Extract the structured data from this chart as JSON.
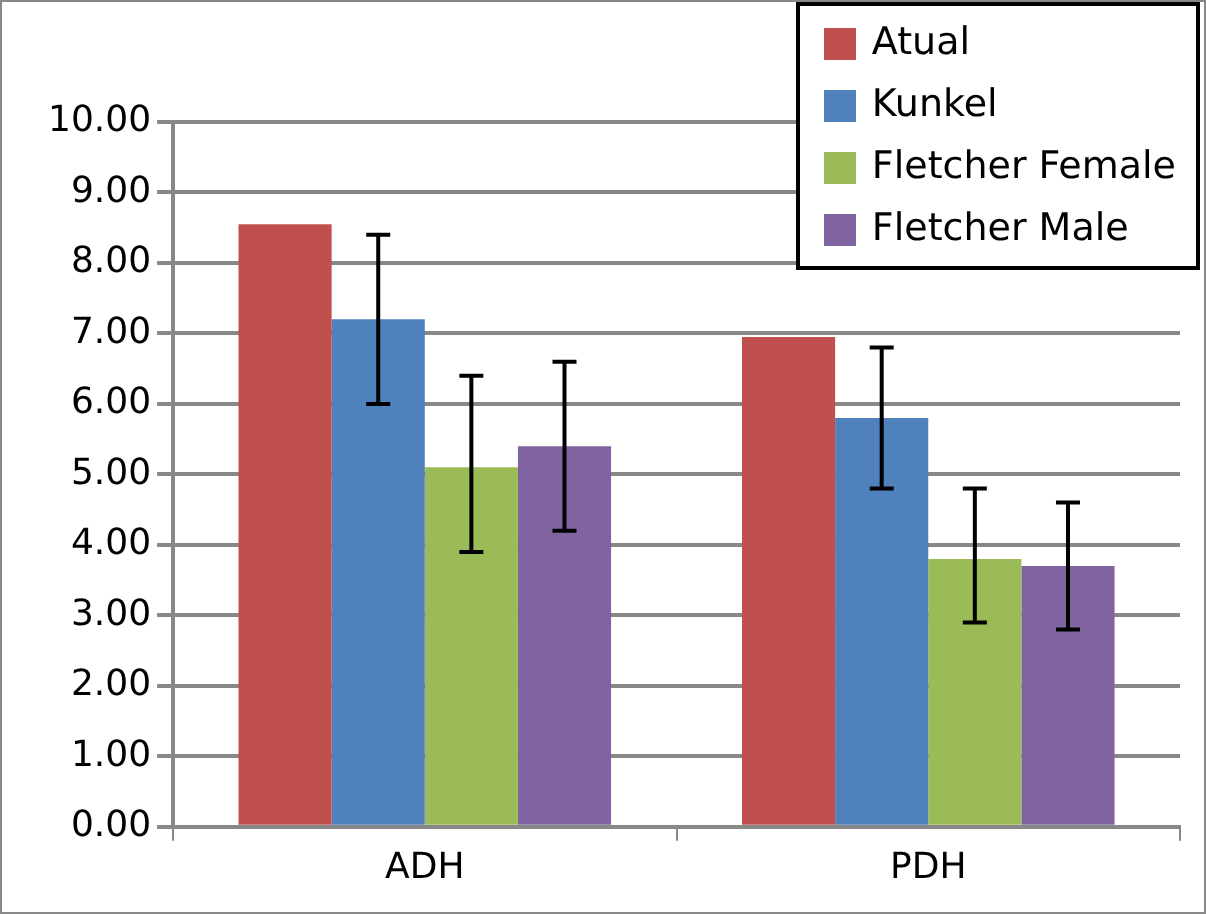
{
  "chart_data": {
    "type": "bar",
    "categories": [
      "ADH",
      "PDH"
    ],
    "series": [
      {
        "name": "Atual",
        "color": "#c0504d",
        "values": [
          8.55,
          6.95
        ]
      },
      {
        "name": "Kunkel",
        "color": "#4f81bd",
        "values": [
          7.2,
          5.8
        ],
        "errors": [
          [
            6.0,
            8.4
          ],
          [
            4.8,
            6.8
          ]
        ]
      },
      {
        "name": "Fletcher Female",
        "color": "#9bbb59",
        "values": [
          5.1,
          3.8
        ],
        "errors": [
          [
            3.9,
            6.4
          ],
          [
            2.9,
            4.8
          ]
        ]
      },
      {
        "name": "Fletcher Male",
        "color": "#8064a2",
        "values": [
          5.4,
          3.7
        ],
        "errors": [
          [
            4.2,
            6.6
          ],
          [
            2.8,
            4.6
          ]
        ]
      }
    ],
    "ylim": [
      0,
      10
    ],
    "yticks": [
      {
        "value": 0,
        "label": "0.00"
      },
      {
        "value": 1,
        "label": "1.00"
      },
      {
        "value": 2,
        "label": "2.00"
      },
      {
        "value": 3,
        "label": "3.00"
      },
      {
        "value": 4,
        "label": "4.00"
      },
      {
        "value": 5,
        "label": "5.00"
      },
      {
        "value": 6,
        "label": "6.00"
      },
      {
        "value": 7,
        "label": "7.00"
      },
      {
        "value": 8,
        "label": "8.00"
      },
      {
        "value": 9,
        "label": "9.00"
      },
      {
        "value": 10,
        "label": "10.00"
      }
    ],
    "grid": "y",
    "legend": "top right"
  }
}
